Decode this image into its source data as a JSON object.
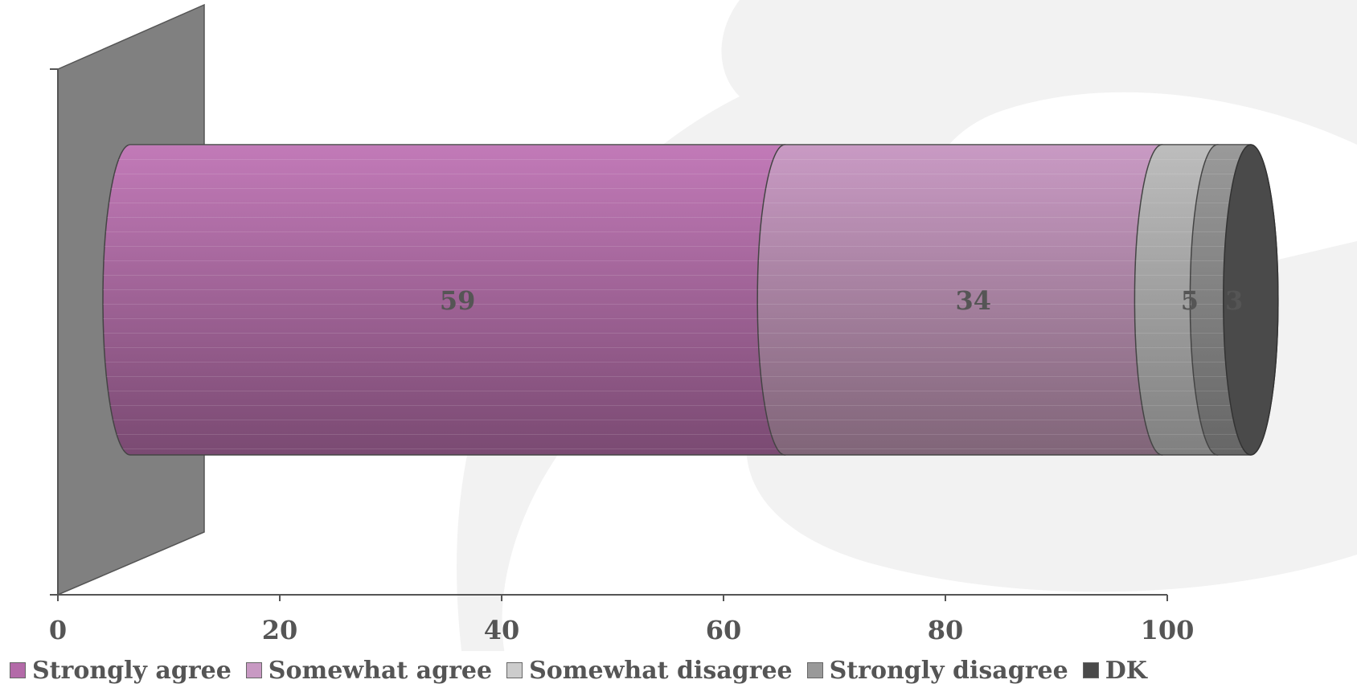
{
  "chart_data": {
    "type": "bar",
    "orientation": "horizontal",
    "stacked": true,
    "style": "3d-cylinder",
    "categories": [
      ""
    ],
    "series": [
      {
        "name": "Strongly agree",
        "values": [
          59
        ],
        "color": "#b36aa8"
      },
      {
        "name": "Somewhat agree",
        "values": [
          34
        ],
        "color": "#b98fb4"
      },
      {
        "name": "Somewhat disagree",
        "values": [
          5
        ],
        "color": "#aaaaaa"
      },
      {
        "name": "Strongly disagree",
        "values": [
          3
        ],
        "color": "#8a8a8a"
      },
      {
        "name": "DK",
        "values": [
          0
        ],
        "color": "#4a4a4a"
      }
    ],
    "data_labels": [
      "59",
      "34",
      "5",
      "3",
      ""
    ],
    "xlim": [
      0,
      100
    ],
    "x_ticks": [
      "0",
      "20",
      "40",
      "60",
      "80",
      "100"
    ],
    "title": "",
    "xlabel": "",
    "ylabel": "",
    "grid": false,
    "legend_position": "bottom"
  },
  "legend": {
    "items": [
      {
        "label": "Strongly agree",
        "color": "#b36aa8"
      },
      {
        "label": "Somewhat agree",
        "color": "#c899c3"
      },
      {
        "label": "Somewhat disagree",
        "color": "#cccccc"
      },
      {
        "label": "Strongly disagree",
        "color": "#999999"
      },
      {
        "label": "DK",
        "color": "#4a4a4a"
      }
    ]
  },
  "colors": {
    "wall": "#808080",
    "axis": "#555555",
    "text": "#555555"
  }
}
